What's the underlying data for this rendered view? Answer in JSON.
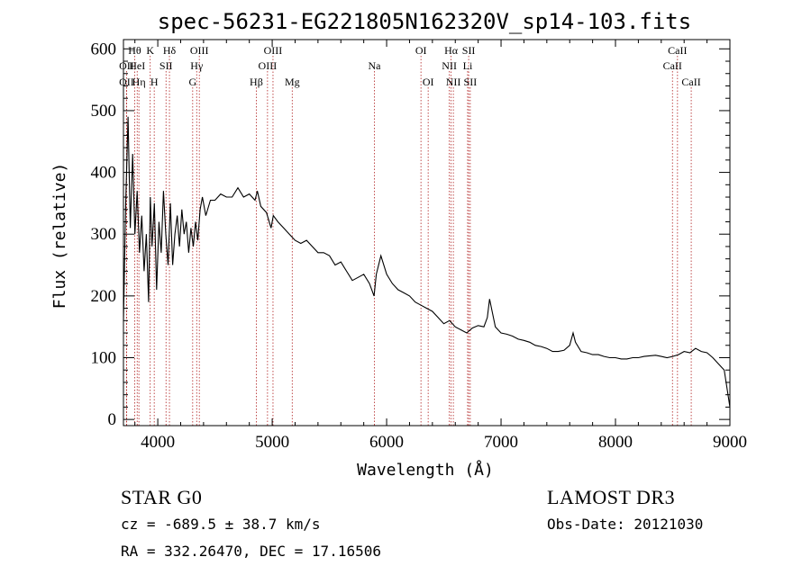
{
  "chart_data": {
    "type": "line",
    "title": "spec-56231-EG221805N162320V_sp14-103.fits",
    "xlabel": "Wavelength (Å)",
    "ylabel": "Flux (relative)",
    "xlim": [
      3700,
      9000
    ],
    "ylim": [
      -10,
      615
    ],
    "x_ticks": [
      4000,
      5000,
      6000,
      7000,
      8000,
      9000
    ],
    "y_ticks": [
      0,
      100,
      200,
      300,
      400,
      500,
      600
    ],
    "x_tick_labels": [
      "4000",
      "5000",
      "6000",
      "7000",
      "8000",
      "9000"
    ],
    "y_tick_labels": [
      "0",
      "100",
      "200",
      "300",
      "400",
      "500",
      "600"
    ],
    "series": [
      {
        "name": "flux",
        "x": [
          3700,
          3720,
          3740,
          3760,
          3780,
          3800,
          3820,
          3840,
          3860,
          3880,
          3900,
          3920,
          3935,
          3950,
          3970,
          3990,
          4010,
          4030,
          4050,
          4070,
          4090,
          4110,
          4130,
          4150,
          4170,
          4190,
          4210,
          4230,
          4250,
          4270,
          4290,
          4310,
          4330,
          4350,
          4370,
          4390,
          4420,
          4460,
          4500,
          4550,
          4600,
          4650,
          4700,
          4750,
          4800,
          4850,
          4870,
          4900,
          4950,
          4990,
          5010,
          5050,
          5100,
          5150,
          5200,
          5250,
          5300,
          5350,
          5400,
          5450,
          5500,
          5550,
          5600,
          5650,
          5700,
          5750,
          5800,
          5850,
          5890,
          5910,
          5950,
          6000,
          6050,
          6100,
          6150,
          6200,
          6250,
          6300,
          6350,
          6400,
          6450,
          6500,
          6550,
          6600,
          6650,
          6700,
          6750,
          6800,
          6850,
          6880,
          6900,
          6950,
          7000,
          7050,
          7100,
          7150,
          7200,
          7250,
          7300,
          7350,
          7400,
          7450,
          7500,
          7550,
          7600,
          7630,
          7650,
          7700,
          7750,
          7800,
          7850,
          7900,
          7950,
          8000,
          8050,
          8100,
          8150,
          8200,
          8250,
          8300,
          8350,
          8400,
          8450,
          8500,
          8550,
          8600,
          8650,
          8700,
          8750,
          8800,
          8850,
          8900,
          8950,
          9000
        ],
        "values": [
          160,
          350,
          490,
          310,
          430,
          300,
          370,
          270,
          330,
          240,
          300,
          190,
          360,
          280,
          350,
          210,
          320,
          270,
          370,
          300,
          250,
          350,
          250,
          300,
          330,
          280,
          340,
          300,
          320,
          270,
          310,
          280,
          320,
          290,
          340,
          360,
          330,
          355,
          355,
          365,
          360,
          360,
          375,
          360,
          365,
          355,
          370,
          345,
          335,
          310,
          330,
          320,
          310,
          300,
          290,
          285,
          290,
          280,
          270,
          270,
          265,
          250,
          255,
          240,
          225,
          230,
          235,
          220,
          200,
          235,
          265,
          235,
          220,
          210,
          205,
          200,
          190,
          185,
          180,
          175,
          165,
          155,
          160,
          150,
          145,
          140,
          148,
          152,
          150,
          165,
          195,
          150,
          140,
          138,
          135,
          130,
          128,
          125,
          120,
          118,
          115,
          110,
          110,
          112,
          120,
          140,
          125,
          110,
          108,
          105,
          105,
          102,
          100,
          100,
          98,
          98,
          100,
          100,
          102,
          103,
          104,
          102,
          100,
          102,
          105,
          110,
          108,
          115,
          110,
          108,
          100,
          90,
          80,
          20
        ]
      }
    ],
    "spectral_lines": [
      {
        "label": "OII",
        "x": 3727,
        "row": 1
      },
      {
        "label": "OII",
        "x": 3727,
        "row": 2
      },
      {
        "label": "Hθ",
        "x": 3798,
        "row": 0
      },
      {
        "label": "HeI",
        "x": 3820,
        "row": 1
      },
      {
        "label": "Hη",
        "x": 3835,
        "row": 2
      },
      {
        "label": "K",
        "x": 3934,
        "row": 0
      },
      {
        "label": "SII",
        "x": 4072,
        "row": 1
      },
      {
        "label": "H",
        "x": 3969,
        "row": 2
      },
      {
        "label": "Hδ",
        "x": 4102,
        "row": 0
      },
      {
        "label": "OIII",
        "x": 4363,
        "row": 0
      },
      {
        "label": "Hγ",
        "x": 4340,
        "row": 1
      },
      {
        "label": "G",
        "x": 4305,
        "row": 2
      },
      {
        "label": "Hβ",
        "x": 4861,
        "row": 2
      },
      {
        "label": "OIII",
        "x": 5007,
        "row": 0
      },
      {
        "label": "OIII",
        "x": 4959,
        "row": 1
      },
      {
        "label": "Mg",
        "x": 5175,
        "row": 2
      },
      {
        "label": "Na",
        "x": 5893,
        "row": 1
      },
      {
        "label": "OI",
        "x": 6300,
        "row": 0
      },
      {
        "label": "OI",
        "x": 6363,
        "row": 2
      },
      {
        "label": "Hα",
        "x": 6563,
        "row": 0
      },
      {
        "label": "NII",
        "x": 6548,
        "row": 1
      },
      {
        "label": "NII",
        "x": 6583,
        "row": 2
      },
      {
        "label": "SII",
        "x": 6717,
        "row": 0
      },
      {
        "label": "Li",
        "x": 6708,
        "row": 1
      },
      {
        "label": "SII",
        "x": 6731,
        "row": 2
      },
      {
        "label": "CaII",
        "x": 8542,
        "row": 0
      },
      {
        "label": "CaII",
        "x": 8498,
        "row": 1
      },
      {
        "label": "CaII",
        "x": 8662,
        "row": 2
      }
    ]
  },
  "info": {
    "classification": "STAR    G0",
    "survey": "LAMOST DR3",
    "redshift": "cz = -689.5 ± 38.7 km/s",
    "obs_date": "Obs-Date: 20121030",
    "coords": "RA = 332.26470, DEC =  17.16506"
  }
}
